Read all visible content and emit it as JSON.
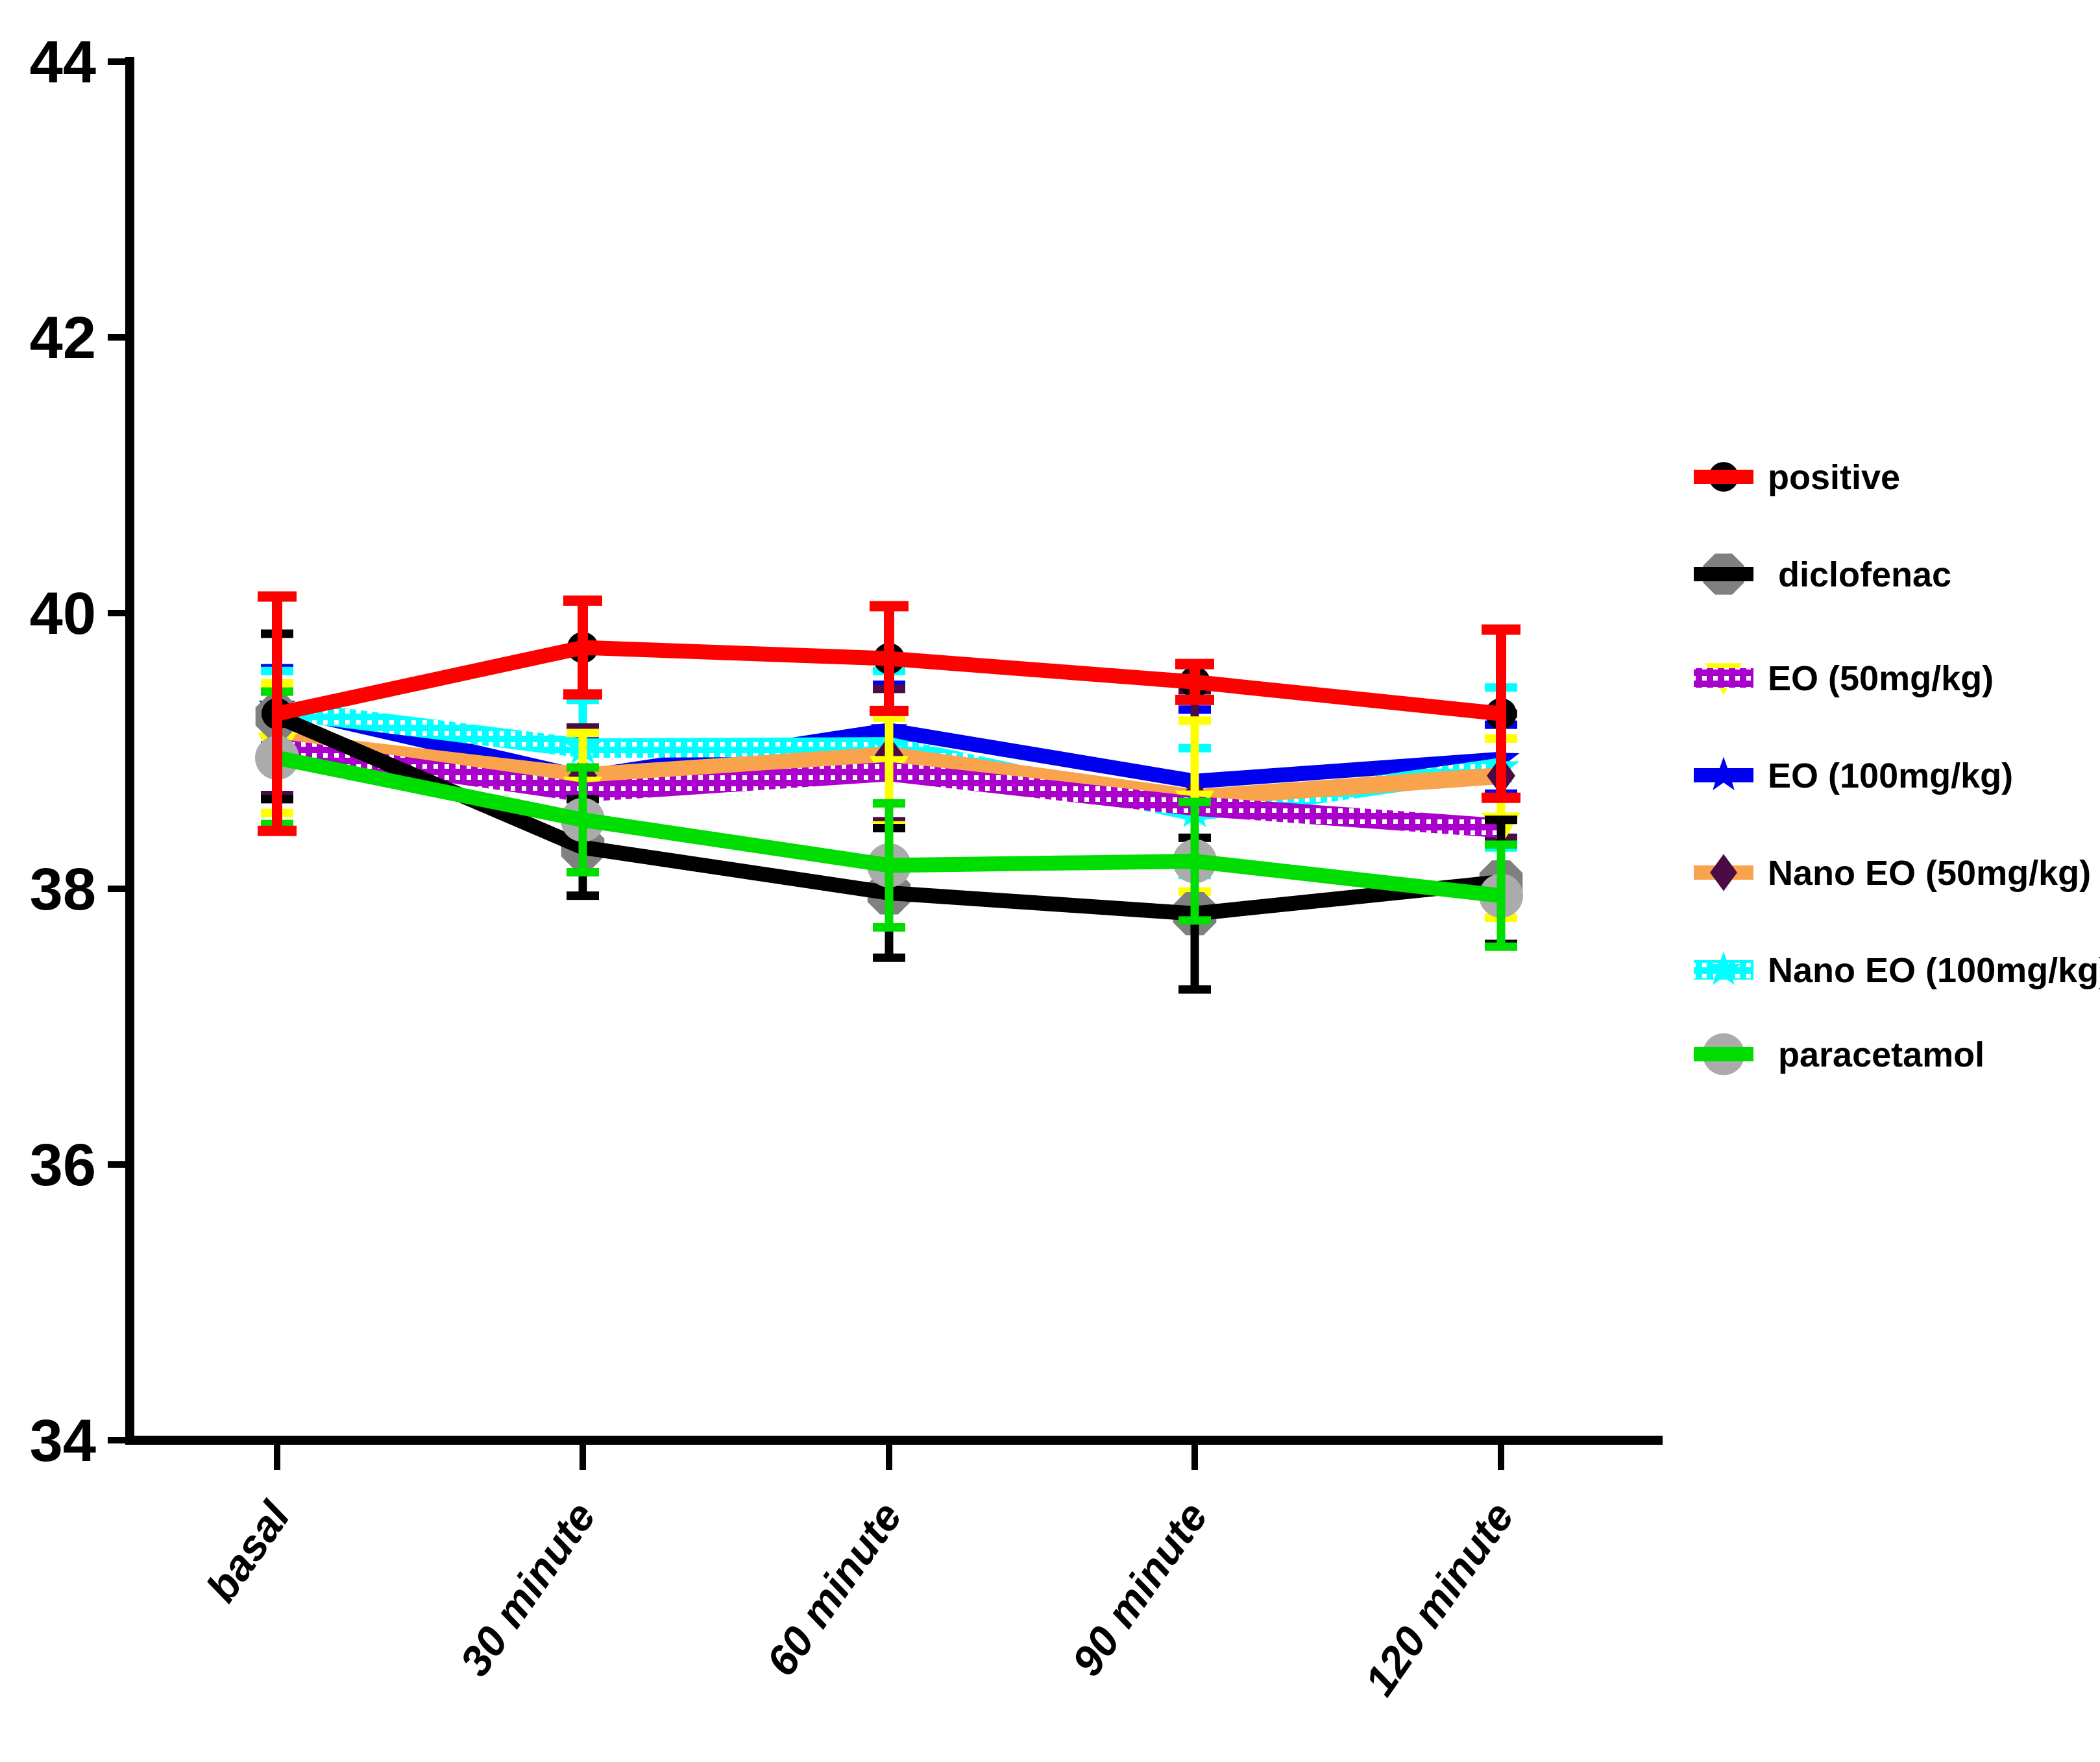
{
  "chart_data": {
    "type": "line",
    "title": "",
    "xlabel": "",
    "ylabel": "",
    "ylim": [
      34,
      44
    ],
    "yticks": [
      34,
      36,
      38,
      40,
      42,
      44
    ],
    "ytick_labels": [
      "34",
      "36",
      "38",
      "40",
      "42",
      "44"
    ],
    "categories": [
      "basal",
      "30 minute",
      "60 minute",
      "90 minute",
      "120 minute"
    ],
    "grid": "off",
    "legend_position": "right",
    "series": [
      {
        "name": "positive",
        "color": "#FF0000",
        "pattern": "solid",
        "marker": "circle",
        "marker_color": "#000000",
        "error_color": "#FF0000",
        "values": [
          39.27,
          39.75,
          39.67,
          39.5,
          39.27
        ],
        "errors": [
          0.85,
          0.34,
          0.38,
          0.13,
          0.61
        ]
      },
      {
        "name": "diclofenac",
        "color": "#000000",
        "pattern": "solid",
        "marker": "octagon",
        "marker_color": "#808080",
        "error_color": "#000000",
        "values": [
          39.25,
          38.3,
          37.97,
          37.82,
          38.05
        ],
        "errors": [
          0.6,
          0.35,
          0.47,
          0.55,
          0.45
        ]
      },
      {
        "name": "EO (50mg/kg)",
        "color": "#AA00CC",
        "pattern": "checker",
        "marker": "triangle-down",
        "marker_color": "#FFFF00",
        "error_color": "#FFFF00",
        "values": [
          39.02,
          38.7,
          38.85,
          38.6,
          38.44
        ],
        "errors": [
          0.47,
          0.43,
          0.39,
          0.62,
          0.65
        ]
      },
      {
        "name": "EO (100mg/kg)",
        "color": "#0000F0",
        "pattern": "solid",
        "marker": "star",
        "marker_color": "#0000F0",
        "error_color": "#0000F0",
        "values": [
          39.32,
          38.81,
          39.15,
          38.78,
          38.94
        ],
        "errors": [
          0.28,
          0.3,
          0.33,
          0.52,
          0.25
        ]
      },
      {
        "name": "Nano EO (50mg/kg)",
        "color": "#F9A34D",
        "pattern": "solid",
        "marker": "diamond",
        "marker_color": "#4B0B45",
        "error_color": "#4B0B45",
        "values": [
          39.08,
          38.82,
          38.97,
          38.66,
          38.82
        ],
        "errors": [
          0.4,
          0.35,
          0.48,
          0.78,
          0.45
        ]
      },
      {
        "name": "Nano EO (100mg/kg)",
        "color": "#00FFFF",
        "pattern": "checker",
        "marker": "star",
        "marker_color": "#00FFFF",
        "error_color": "#00FFFF",
        "values": [
          39.3,
          39.02,
          39.03,
          38.56,
          38.88
        ],
        "errors": [
          0.28,
          0.35,
          0.55,
          0.46,
          0.58
        ]
      },
      {
        "name": "paracetamol",
        "color": "#00DD00",
        "pattern": "solid",
        "marker": "circle-large",
        "marker_color": "#ABABAB",
        "error_color": "#00DD00",
        "values": [
          38.95,
          38.5,
          38.17,
          38.2,
          37.95
        ],
        "errors": [
          0.48,
          0.38,
          0.45,
          0.43,
          0.37
        ]
      }
    ]
  }
}
